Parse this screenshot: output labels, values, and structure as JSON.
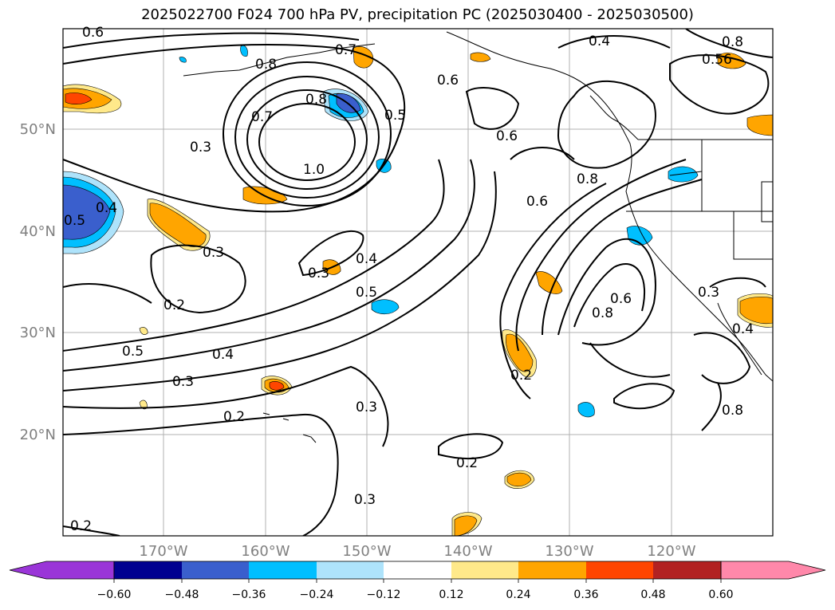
{
  "title": "2025022700 F024 700 hPa PV, precipitation PC (2025030400 - 2025030500)",
  "lat_labels": [
    "50°N",
    "40°N",
    "30°N",
    "20°N"
  ],
  "lon_labels": [
    "170°W",
    "160°W",
    "150°W",
    "140°W",
    "130°W",
    "120°W"
  ],
  "colorbar": {
    "tick_labels": [
      "−0.60",
      "−0.48",
      "−0.36",
      "−0.24",
      "−0.12",
      "0.12",
      "0.24",
      "0.36",
      "0.48",
      "0.60"
    ],
    "colors": [
      "#9a35d8",
      "#000090",
      "#3a5fcd",
      "#00bfff",
      "#aee3fb",
      "#ffffff",
      "#ffe98a",
      "#ffa500",
      "#ff4500",
      "#b22222",
      "#ff88aa"
    ]
  },
  "contour_labels": [
    "0.6",
    "0.8",
    "0.7",
    "0.4",
    "0.8",
    "0.56",
    "0.6",
    "0.7",
    "0.8",
    "0.5",
    "1.0",
    "0.3",
    "0.6",
    "0.8",
    "0.6",
    "0.4",
    "0.5",
    "0.3",
    "0.4",
    "0.3",
    "0.5",
    "0.2",
    "0.8",
    "0.6",
    "0.3",
    "0.4",
    "0.5",
    "0.4",
    "0.3",
    "0.2",
    "0.3",
    "0.2",
    "0.3",
    "0.2",
    "0.2",
    "0.8"
  ]
}
